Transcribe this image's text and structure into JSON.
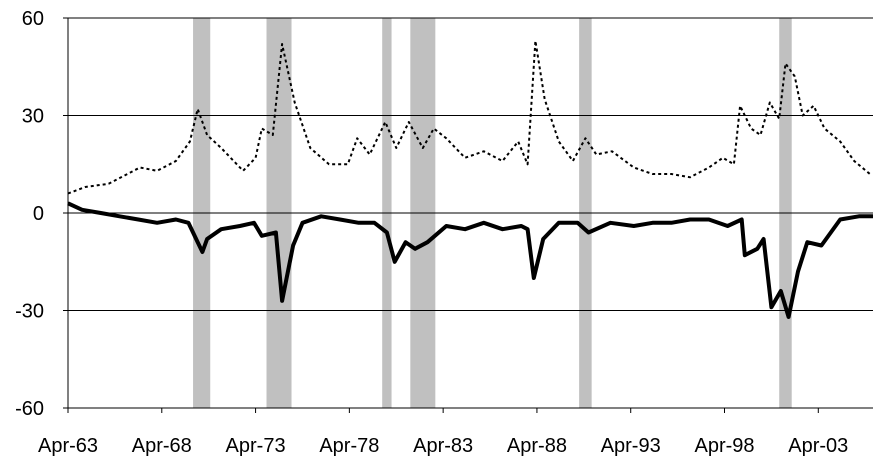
{
  "chart_data": {
    "type": "line",
    "title": "",
    "xlabel": "",
    "ylabel": "",
    "xlim": [
      "1963-04",
      "2006-03"
    ],
    "ylim": [
      -60,
      60
    ],
    "grid": "horizontal",
    "legend": "none",
    "x_tick_labels": [
      "Apr-63",
      "Apr-68",
      "Apr-73",
      "Apr-78",
      "Apr-83",
      "Apr-88",
      "Apr-93",
      "Apr-98",
      "Apr-03"
    ],
    "y_tick_labels": [
      "60",
      "30",
      "0",
      "-30",
      "-60"
    ],
    "y_ticks": [
      60,
      30,
      0,
      -30,
      -60
    ],
    "shaded_periods": [
      {
        "start": "1969-12",
        "end": "1970-11"
      },
      {
        "start": "1973-11",
        "end": "1975-03"
      },
      {
        "start": "1980-01",
        "end": "1980-07"
      },
      {
        "start": "1981-07",
        "end": "1982-11"
      },
      {
        "start": "1990-07",
        "end": "1991-03"
      },
      {
        "start": "2001-03",
        "end": "2001-11"
      }
    ],
    "series": [
      {
        "style": "dotted",
        "color": "#000000",
        "points": [
          [
            "1963-04",
            6
          ],
          [
            "1964-03",
            8
          ],
          [
            "1965-06",
            9
          ],
          [
            "1966-06",
            12
          ],
          [
            "1967-02",
            14
          ],
          [
            "1968-01",
            13
          ],
          [
            "1969-01",
            16
          ],
          [
            "1969-10",
            22
          ],
          [
            "1970-03",
            32
          ],
          [
            "1970-09",
            24
          ],
          [
            "1971-06",
            20
          ],
          [
            "1972-08",
            13
          ],
          [
            "1973-04",
            17
          ],
          [
            "1973-08",
            26
          ],
          [
            "1974-03",
            24
          ],
          [
            "1974-09",
            52
          ],
          [
            "1975-05",
            34
          ],
          [
            "1976-03",
            20
          ],
          [
            "1977-03",
            15
          ],
          [
            "1978-03",
            15
          ],
          [
            "1978-09",
            23
          ],
          [
            "1979-05",
            18
          ],
          [
            "1980-03",
            28
          ],
          [
            "1980-10",
            20
          ],
          [
            "1981-06",
            28
          ],
          [
            "1982-03",
            20
          ],
          [
            "1982-10",
            26
          ],
          [
            "1983-06",
            23
          ],
          [
            "1984-06",
            17
          ],
          [
            "1985-06",
            19
          ],
          [
            "1986-06",
            16
          ],
          [
            "1987-04",
            22
          ],
          [
            "1987-10",
            15
          ],
          [
            "1988-03",
            53
          ],
          [
            "1988-09",
            35
          ],
          [
            "1989-06",
            22
          ],
          [
            "1990-03",
            16
          ],
          [
            "1990-11",
            23
          ],
          [
            "1991-06",
            18
          ],
          [
            "1992-04",
            19
          ],
          [
            "1993-06",
            14
          ],
          [
            "1994-06",
            12
          ],
          [
            "1995-06",
            12
          ],
          [
            "1996-06",
            11
          ],
          [
            "1997-06",
            14
          ],
          [
            "1998-03",
            17
          ],
          [
            "1998-10",
            15
          ],
          [
            "1999-02",
            33
          ],
          [
            "1999-09",
            26
          ],
          [
            "2000-03",
            24
          ],
          [
            "2000-09",
            34
          ],
          [
            "2001-03",
            29
          ],
          [
            "2001-07",
            46
          ],
          [
            "2002-01",
            42
          ],
          [
            "2002-06",
            30
          ],
          [
            "2003-01",
            33
          ],
          [
            "2003-08",
            26
          ],
          [
            "2004-06",
            22
          ],
          [
            "2005-03",
            16
          ],
          [
            "2006-01",
            12
          ]
        ]
      },
      {
        "style": "solid",
        "color": "#000000",
        "points": [
          [
            "1963-04",
            3
          ],
          [
            "1964-01",
            1
          ],
          [
            "1965-01",
            0
          ],
          [
            "1966-01",
            -1
          ],
          [
            "1967-01",
            -2
          ],
          [
            "1968-01",
            -3
          ],
          [
            "1969-01",
            -2
          ],
          [
            "1969-09",
            -3
          ],
          [
            "1970-03",
            -9
          ],
          [
            "1970-06",
            -12
          ],
          [
            "1970-09",
            -8
          ],
          [
            "1971-06",
            -5
          ],
          [
            "1972-06",
            -4
          ],
          [
            "1973-03",
            -3
          ],
          [
            "1973-08",
            -7
          ],
          [
            "1974-05",
            -6
          ],
          [
            "1974-09",
            -27
          ],
          [
            "1975-04",
            -10
          ],
          [
            "1975-10",
            -3
          ],
          [
            "1976-10",
            -1
          ],
          [
            "1977-10",
            -2
          ],
          [
            "1978-10",
            -3
          ],
          [
            "1979-08",
            -3
          ],
          [
            "1980-04",
            -6
          ],
          [
            "1980-09",
            -15
          ],
          [
            "1981-04",
            -9
          ],
          [
            "1981-10",
            -11
          ],
          [
            "1982-06",
            -9
          ],
          [
            "1983-06",
            -4
          ],
          [
            "1984-06",
            -5
          ],
          [
            "1985-06",
            -3
          ],
          [
            "1986-06",
            -5
          ],
          [
            "1987-06",
            -4
          ],
          [
            "1987-10",
            -5
          ],
          [
            "1988-02",
            -20
          ],
          [
            "1988-08",
            -8
          ],
          [
            "1989-06",
            -3
          ],
          [
            "1990-06",
            -3
          ],
          [
            "1991-01",
            -6
          ],
          [
            "1992-03",
            -3
          ],
          [
            "1993-06",
            -4
          ],
          [
            "1994-06",
            -3
          ],
          [
            "1995-06",
            -3
          ],
          [
            "1996-06",
            -2
          ],
          [
            "1997-06",
            -2
          ],
          [
            "1998-06",
            -4
          ],
          [
            "1999-03",
            -2
          ],
          [
            "1999-05",
            -13
          ],
          [
            "2000-01",
            -11
          ],
          [
            "2000-05",
            -8
          ],
          [
            "2000-10",
            -29
          ],
          [
            "2001-04",
            -24
          ],
          [
            "2001-09",
            -32
          ],
          [
            "2002-03",
            -18
          ],
          [
            "2002-09",
            -9
          ],
          [
            "2003-06",
            -10
          ],
          [
            "2004-06",
            -2
          ],
          [
            "2005-06",
            -1
          ],
          [
            "2006-03",
            -1
          ]
        ]
      }
    ]
  }
}
